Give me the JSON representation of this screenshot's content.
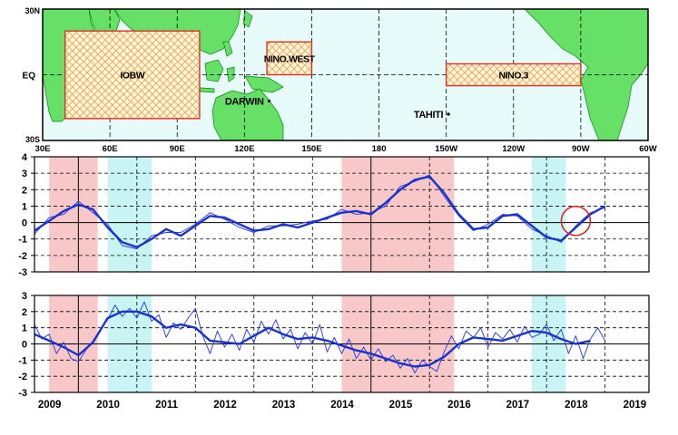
{
  "map": {
    "lat_labels": [
      "30N",
      "EQ",
      "30S"
    ],
    "lon_labels": [
      "30E",
      "60E",
      "90E",
      "120E",
      "150E",
      "180",
      "150W",
      "120W",
      "90W",
      "60W"
    ],
    "lon_range": [
      30,
      300
    ],
    "lat_range": [
      -30,
      30
    ],
    "regions": [
      {
        "label": "IOBW",
        "lon": [
          40,
          100
        ],
        "lat": [
          -20,
          20
        ],
        "color": "#e03020"
      },
      {
        "label": "NINO.WEST",
        "lon": [
          130,
          150
        ],
        "lat": [
          0,
          15
        ],
        "color": "#e03020"
      },
      {
        "label": "NINO.3",
        "lon": [
          210,
          270
        ],
        "lat": [
          -5,
          5
        ],
        "color": "#e03020"
      }
    ],
    "stations": [
      {
        "label": "DARWIN",
        "lon": 131,
        "lat": -12
      },
      {
        "label": "TAHITI",
        "lon": 211,
        "lat": -18
      }
    ],
    "colors": {
      "ocean": "#e8fbfb",
      "land": "#66e066",
      "coast": "#008800"
    }
  },
  "chart_data": [
    {
      "type": "line",
      "x_range": [
        2008.75,
        2019.25
      ],
      "ylim": [
        -3,
        4
      ],
      "yticks": [
        -3,
        -2,
        -1,
        0,
        1,
        2,
        3,
        4
      ],
      "grid": true,
      "shading": [
        {
          "phase": "warm",
          "x": [
            2009.0,
            2009.83
          ],
          "color": "#f8c8c8"
        },
        {
          "phase": "cold",
          "x": [
            2010.0,
            2010.75
          ],
          "color": "#c8f4f4"
        },
        {
          "phase": "warm",
          "x": [
            2014.0,
            2015.92
          ],
          "color": "#f8c8c8"
        },
        {
          "phase": "cold",
          "x": [
            2017.25,
            2017.83
          ],
          "color": "#c8f4f4"
        }
      ],
      "circle": {
        "x": 2018.0,
        "y": 0.1
      },
      "series": [
        {
          "style": "running-mean",
          "color": "#1a33cc",
          "x": [
            2008.75,
            2009.0,
            2009.25,
            2009.5,
            2009.75,
            2010.0,
            2010.25,
            2010.5,
            2010.75,
            2011.0,
            2011.25,
            2011.5,
            2011.75,
            2012.0,
            2012.25,
            2012.5,
            2012.75,
            2013.0,
            2013.25,
            2013.5,
            2013.75,
            2014.0,
            2014.25,
            2014.5,
            2014.75,
            2015.0,
            2015.25,
            2015.5,
            2015.75,
            2016.0,
            2016.25,
            2016.5,
            2016.75,
            2017.0,
            2017.25,
            2017.5,
            2017.75,
            2018.0,
            2018.25,
            2018.5
          ],
          "y": [
            -0.5,
            0.1,
            0.7,
            1.1,
            0.8,
            -0.3,
            -1.2,
            -1.5,
            -1.0,
            -0.4,
            -0.8,
            -0.2,
            0.4,
            0.3,
            -0.1,
            -0.5,
            -0.4,
            -0.1,
            -0.3,
            0.0,
            0.3,
            0.6,
            0.7,
            0.5,
            1.2,
            2.0,
            2.6,
            2.8,
            1.8,
            0.5,
            -0.4,
            -0.3,
            0.4,
            0.5,
            -0.2,
            -0.9,
            -1.1,
            -0.3,
            0.5,
            1.0
          ]
        },
        {
          "style": "monthly",
          "color": "#3344dd",
          "x": [
            2008.75,
            2009.0,
            2009.25,
            2009.5,
            2009.75,
            2010.0,
            2010.25,
            2010.5,
            2010.75,
            2011.0,
            2011.25,
            2011.5,
            2011.75,
            2012.0,
            2012.25,
            2012.5,
            2012.75,
            2013.0,
            2013.25,
            2013.5,
            2013.75,
            2014.0,
            2014.25,
            2014.5,
            2014.75,
            2015.0,
            2015.25,
            2015.5,
            2015.75,
            2016.0,
            2016.25,
            2016.5,
            2016.75,
            2017.0,
            2017.25,
            2017.5,
            2017.75,
            2018.0,
            2018.25,
            2018.5
          ],
          "y": [
            -0.7,
            0.3,
            0.5,
            1.3,
            0.6,
            -0.1,
            -1.4,
            -1.6,
            -0.8,
            -0.6,
            -0.6,
            -0.1,
            0.6,
            0.2,
            -0.3,
            -0.6,
            -0.2,
            -0.2,
            -0.1,
            0.1,
            0.2,
            0.8,
            0.5,
            0.6,
            1.0,
            2.2,
            2.5,
            2.9,
            1.6,
            0.4,
            -0.5,
            -0.1,
            0.5,
            0.4,
            -0.4,
            -0.8,
            -1.2,
            -0.2,
            0.6,
            0.9
          ]
        }
      ]
    },
    {
      "type": "line",
      "x_range": [
        2008.75,
        2019.25
      ],
      "ylim": [
        -3,
        3
      ],
      "yticks": [
        -3,
        -2,
        -1,
        0,
        1,
        2,
        3
      ],
      "xticks": [
        "2009",
        "2010",
        "2011",
        "2012",
        "2013",
        "2014",
        "2015",
        "2016",
        "2017",
        "2018",
        "2019"
      ],
      "grid": true,
      "shading": [
        {
          "phase": "warm",
          "x": [
            2009.0,
            2009.83
          ],
          "color": "#f8c8c8"
        },
        {
          "phase": "cold",
          "x": [
            2010.0,
            2010.75
          ],
          "color": "#c8f4f4"
        },
        {
          "phase": "warm",
          "x": [
            2014.0,
            2015.92
          ],
          "color": "#f8c8c8"
        },
        {
          "phase": "cold",
          "x": [
            2017.25,
            2017.83
          ],
          "color": "#c8f4f4"
        }
      ],
      "series": [
        {
          "style": "running-mean",
          "color": "#1a33cc",
          "x": [
            2008.75,
            2009.0,
            2009.25,
            2009.5,
            2009.75,
            2010.0,
            2010.25,
            2010.5,
            2010.75,
            2011.0,
            2011.25,
            2011.5,
            2011.75,
            2012.0,
            2012.25,
            2012.5,
            2012.75,
            2013.0,
            2013.25,
            2013.5,
            2013.75,
            2014.0,
            2014.25,
            2014.5,
            2014.75,
            2015.0,
            2015.25,
            2015.5,
            2015.75,
            2016.0,
            2016.25,
            2016.5,
            2016.75,
            2017.0,
            2017.25,
            2017.5,
            2017.75,
            2018.0,
            2018.25
          ],
          "y": [
            0.6,
            0.2,
            -0.2,
            -0.7,
            0.1,
            1.6,
            2.0,
            2.0,
            1.7,
            1.0,
            1.2,
            1.0,
            0.2,
            0.1,
            0.0,
            0.5,
            1.0,
            0.6,
            0.3,
            0.4,
            0.2,
            -0.1,
            -0.4,
            -0.6,
            -0.9,
            -1.2,
            -1.4,
            -1.3,
            -0.8,
            0.0,
            0.4,
            0.3,
            0.2,
            0.5,
            0.8,
            0.7,
            0.3,
            0.0,
            0.2
          ]
        },
        {
          "style": "monthly",
          "color": "#3344dd",
          "x": [
            2008.75,
            2008.875,
            2009.0,
            2009.125,
            2009.25,
            2009.375,
            2009.5,
            2009.625,
            2009.75,
            2009.875,
            2010.0,
            2010.125,
            2010.25,
            2010.375,
            2010.5,
            2010.625,
            2010.75,
            2010.875,
            2011.0,
            2011.125,
            2011.25,
            2011.375,
            2011.5,
            2011.625,
            2011.75,
            2011.875,
            2012.0,
            2012.125,
            2012.25,
            2012.375,
            2012.5,
            2012.625,
            2012.75,
            2012.875,
            2013.0,
            2013.125,
            2013.25,
            2013.375,
            2013.5,
            2013.625,
            2013.75,
            2013.875,
            2014.0,
            2014.125,
            2014.25,
            2014.375,
            2014.5,
            2014.625,
            2014.75,
            2014.875,
            2015.0,
            2015.125,
            2015.25,
            2015.375,
            2015.5,
            2015.625,
            2015.75,
            2015.875,
            2016.0,
            2016.125,
            2016.25,
            2016.375,
            2016.5,
            2016.625,
            2016.75,
            2016.875,
            2017.0,
            2017.125,
            2017.25,
            2017.375,
            2017.5,
            2017.625,
            2017.75,
            2017.875,
            2018.0,
            2018.125,
            2018.25,
            2018.375,
            2018.5
          ],
          "y": [
            1.2,
            0.3,
            0.6,
            -0.6,
            0.1,
            -0.9,
            -1.1,
            -0.4,
            0.2,
            0.9,
            1.5,
            2.4,
            1.7,
            2.2,
            1.6,
            2.6,
            1.4,
            1.8,
            0.4,
            1.3,
            0.9,
            1.6,
            2.2,
            0.5,
            -0.6,
            0.8,
            -0.2,
            0.6,
            -0.4,
            0.9,
            0.1,
            1.4,
            0.6,
            1.5,
            0.3,
            0.9,
            -0.3,
            0.7,
            0.0,
            1.2,
            -0.5,
            0.4,
            -0.6,
            0.3,
            -0.9,
            -0.2,
            -1.0,
            -0.3,
            -1.1,
            -0.7,
            -1.5,
            -0.9,
            -1.8,
            -1.0,
            -1.4,
            -1.7,
            -0.5,
            0.5,
            -0.3,
            0.8,
            0.4,
            1.0,
            -0.2,
            0.7,
            0.3,
            0.9,
            0.1,
            1.1,
            0.4,
            0.6,
            1.2,
            0.2,
            0.9,
            -0.6,
            0.5,
            -0.9,
            0.3,
            1.0,
            0.2
          ]
        }
      ]
    }
  ]
}
